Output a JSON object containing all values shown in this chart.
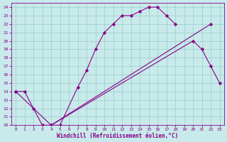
{
  "bg_color": "#c8eaea",
  "line_color": "#880088",
  "grid_color": "#99cccc",
  "curve1_x": [
    0,
    1,
    2,
    3,
    4,
    5,
    7,
    8,
    9,
    10,
    11,
    12,
    13,
    14,
    15,
    16,
    17,
    18
  ],
  "curve1_y": [
    14,
    14,
    12,
    10,
    10,
    10,
    14.5,
    16.5,
    19,
    21,
    22,
    23,
    23,
    23.5,
    24,
    24,
    23,
    22
  ],
  "curve2_x": [
    0,
    4,
    20,
    21,
    22,
    23
  ],
  "curve2_y": [
    14,
    10,
    20,
    19,
    17,
    15
  ],
  "curve3_x": [
    4,
    22
  ],
  "curve3_y": [
    10,
    22
  ],
  "xlim": [
    -0.5,
    23.5
  ],
  "ylim": [
    10,
    24.5
  ],
  "xticks": [
    0,
    1,
    2,
    3,
    4,
    5,
    6,
    7,
    8,
    9,
    10,
    11,
    12,
    13,
    14,
    15,
    16,
    17,
    18,
    19,
    20,
    21,
    22,
    23
  ],
  "yticks": [
    10,
    11,
    12,
    13,
    14,
    15,
    16,
    17,
    18,
    19,
    20,
    21,
    22,
    23,
    24
  ],
  "xlabel": "Windchill (Refroidissement éolien,°C)"
}
